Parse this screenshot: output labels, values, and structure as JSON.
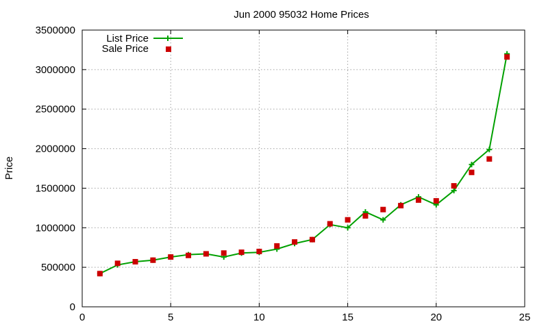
{
  "chart_data": {
    "type": "line",
    "title": "Jun 2000 95032 Home Prices",
    "xlabel": "",
    "ylabel": "Price",
    "xlim": [
      0,
      25
    ],
    "ylim": [
      0,
      3500000
    ],
    "xticks": [
      0,
      5,
      10,
      15,
      20,
      25
    ],
    "yticks": [
      0,
      500000,
      1000000,
      1500000,
      2000000,
      2500000,
      3000000,
      3500000
    ],
    "grid": true,
    "legend_position": "top-left",
    "series": [
      {
        "name": "List Price",
        "style": "line+cross",
        "color": "#00a000",
        "x": [
          1,
          2,
          3,
          4,
          5,
          6,
          7,
          8,
          9,
          10,
          11,
          12,
          13,
          14,
          15,
          16,
          17,
          18,
          19,
          20,
          21,
          22,
          23,
          24
        ],
        "values": [
          420000,
          530000,
          570000,
          590000,
          630000,
          660000,
          670000,
          630000,
          680000,
          690000,
          730000,
          800000,
          850000,
          1040000,
          1000000,
          1200000,
          1100000,
          1290000,
          1390000,
          1290000,
          1470000,
          1800000,
          1990000,
          3200000
        ]
      },
      {
        "name": "Sale Price",
        "style": "square",
        "color": "#cc0000",
        "x": [
          1,
          2,
          3,
          4,
          5,
          6,
          7,
          8,
          9,
          10,
          11,
          12,
          13,
          14,
          15,
          16,
          17,
          18,
          19,
          20,
          21,
          22,
          23,
          24
        ],
        "values": [
          420000,
          550000,
          570000,
          590000,
          630000,
          650000,
          670000,
          680000,
          690000,
          700000,
          770000,
          820000,
          850000,
          1050000,
          1100000,
          1150000,
          1230000,
          1280000,
          1350000,
          1340000,
          1530000,
          1700000,
          1870000,
          3160000
        ]
      }
    ]
  }
}
